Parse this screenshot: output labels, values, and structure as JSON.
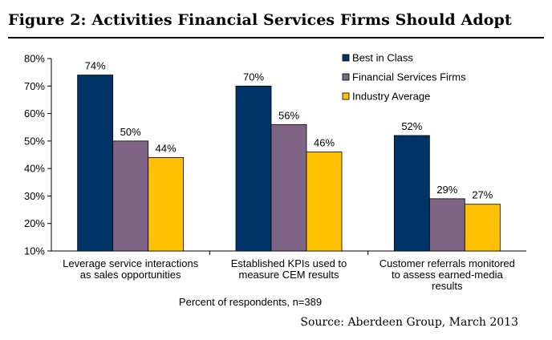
{
  "title": "Figure 2: Activities Financial Services Firms Should Adopt",
  "source": "Source: Aberdeen Group, March 2013",
  "colors": {
    "best": "#003366",
    "fsf": "#7F6485",
    "avg": "#FFC000"
  },
  "chart_data": {
    "type": "bar",
    "title": "Figure 2: Activities Financial Services Firms Should Adopt",
    "xlabel": "Percent of respondents, n=389",
    "ylabel": "",
    "ylim": [
      10,
      80
    ],
    "yticks": [
      "10%",
      "20%",
      "30%",
      "40%",
      "50%",
      "60%",
      "70%",
      "80%"
    ],
    "grid": false,
    "legend": "top-right",
    "categories": [
      [
        "Leverage service interactions",
        "as sales opportunities"
      ],
      [
        "Established KPIs used to",
        "measure CEM results"
      ],
      [
        "Customer referrals monitored",
        "to assess earned-media",
        "results"
      ]
    ],
    "series": [
      {
        "name": "Best in Class",
        "values": [
          74,
          70,
          52
        ],
        "labels": [
          "74%",
          "70%",
          "52%"
        ]
      },
      {
        "name": "Financial Services Firms",
        "values": [
          50,
          56,
          29
        ],
        "labels": [
          "50%",
          "56%",
          "29%"
        ]
      },
      {
        "name": "Industry Average",
        "values": [
          44,
          46,
          27
        ],
        "labels": [
          "44%",
          "46%",
          "27%"
        ]
      }
    ]
  }
}
